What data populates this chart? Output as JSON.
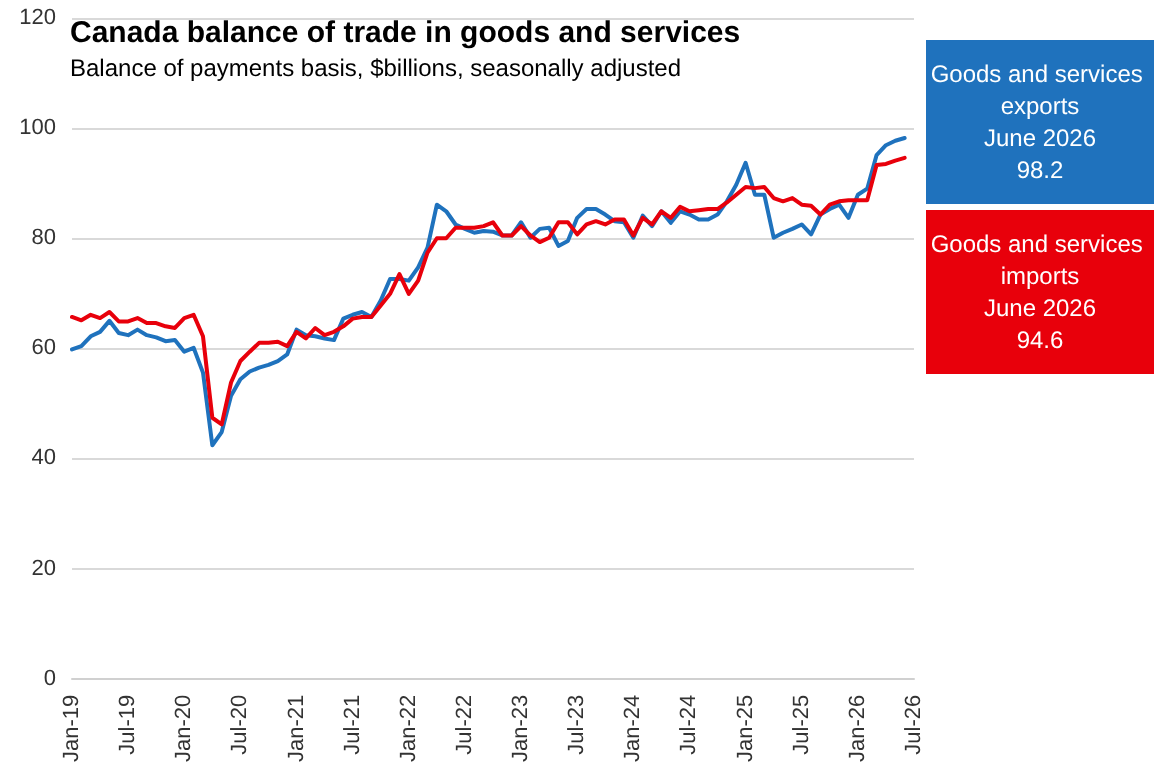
{
  "chart_data": {
    "type": "line",
    "title": "Canada balance of trade in goods and services",
    "subtitle": "Balance of payments basis, $billions, seasonally adjusted",
    "categories": [
      "Jan-19",
      null,
      null,
      null,
      null,
      null,
      "Jul-19",
      null,
      null,
      null,
      null,
      null,
      "Jan-20",
      null,
      null,
      null,
      null,
      null,
      "Jul-20",
      null,
      null,
      null,
      null,
      null,
      "Jan-21",
      null,
      null,
      null,
      null,
      null,
      "Jul-21",
      null,
      null,
      null,
      null,
      null,
      "Jan-22",
      null,
      null,
      null,
      null,
      null,
      "Jul-22",
      null,
      null,
      null,
      null,
      null,
      "Jan-23",
      null,
      null,
      null,
      null,
      null,
      "Jul-23",
      null,
      null,
      null,
      null,
      null,
      "Jan-24",
      null,
      null,
      null,
      null,
      null,
      "Jul-24",
      null,
      null,
      null,
      null,
      null,
      "Jan-25",
      null,
      null,
      null,
      null,
      null,
      "Jul-25",
      null,
      null,
      null,
      null,
      null,
      "Jan-26",
      null,
      null,
      null,
      null,
      null,
      "Jul-26"
    ],
    "series": [
      {
        "color": "#1f72bd",
        "values": [
          59.8,
          60.4,
          62.2,
          63,
          65,
          62.8,
          62.4,
          63.4,
          62.4,
          62,
          61.3,
          61.5,
          59.4,
          60.1,
          55.6,
          42.4,
          44.8,
          51.4,
          54.4,
          55.8,
          56.5,
          57,
          57.7,
          58.9,
          63.4,
          62.4,
          62.2,
          61.8,
          61.5,
          65.4,
          66.1,
          66.6,
          65.7,
          68.7,
          72.6,
          72.6,
          72.3,
          74.7,
          78.3,
          86.1,
          84.9,
          82.5,
          81.7,
          81,
          81.3,
          81.2,
          80.5,
          80.5,
          82.9,
          80.1,
          81.7,
          81.9,
          78.6,
          79.5,
          83.7,
          85.3,
          85.3,
          84.3,
          83.1,
          82.9,
          80.1,
          84.1,
          82.2,
          84.9,
          82.8,
          84.9,
          84.3,
          83.4,
          83.4,
          84.3,
          86.7,
          89.7,
          93.7,
          87.9,
          87.9,
          80.1,
          81,
          81.7,
          82.5,
          80.7,
          84.3,
          85.3,
          86.1,
          83.7,
          87.9,
          89,
          95.1,
          96.9,
          97.7,
          98.2,
          null
        ]
      },
      {
        "color": "#e8000b",
        "values": [
          65.7,
          65.1,
          66.1,
          65.5,
          66.6,
          64.9,
          64.9,
          65.5,
          64.6,
          64.6,
          64,
          63.7,
          65.5,
          66.1,
          62.2,
          47.4,
          46.2,
          53.8,
          57.7,
          59.4,
          61,
          61,
          61.2,
          60.4,
          63,
          61.8,
          63.7,
          62.4,
          63,
          64,
          65.4,
          65.7,
          65.7,
          67.8,
          69.9,
          73.5,
          69.9,
          72.3,
          77.4,
          80,
          80,
          81.9,
          81.9,
          81.9,
          82.2,
          82.9,
          80.5,
          80.5,
          82.2,
          80.5,
          79.3,
          80.1,
          82.9,
          82.9,
          80.7,
          82.5,
          83.1,
          82.5,
          83.4,
          83.4,
          80.5,
          83.7,
          82.5,
          84.9,
          83.7,
          85.7,
          84.9,
          85.1,
          85.3,
          85.3,
          86.5,
          87.9,
          89.3,
          89.1,
          89.3,
          87.3,
          86.7,
          87.3,
          86.1,
          85.9,
          84.3,
          86.1,
          86.7,
          86.9,
          86.9,
          86.9,
          93.3,
          93.5,
          94.1,
          94.6,
          null
        ]
      }
    ],
    "annotations": [
      "Goods and services exports\nJune 2026\n98.2",
      "Goods and services imports\nJune 2026\n94.6"
    ],
    "ylim": [
      0,
      120
    ],
    "yticks": [
      0,
      20,
      40,
      60,
      80,
      100,
      120
    ],
    "grid": "y",
    "marker": "none",
    "line_style": "solid"
  }
}
